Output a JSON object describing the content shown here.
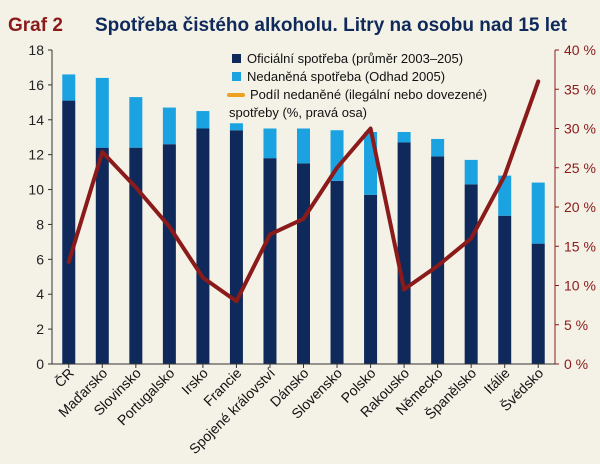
{
  "header": {
    "figure_label": "Graf 2",
    "title": "Spotřeba čistého alkoholu. Litry na osobu nad 15 let"
  },
  "colors": {
    "background": "#f4f1e6",
    "title_blue": "#0f2a5a",
    "label_red": "#8b1a1a",
    "bar_official": "#0f2a5a",
    "bar_untaxed": "#1aa3e0",
    "line": "#8b1a1a",
    "legend_orange": "#f0a020",
    "axis_right": "#8b1a1a",
    "axis_left": "#222222"
  },
  "chart_data": {
    "type": "bar",
    "stacked": true,
    "categories": [
      "ČR",
      "Maďarsko",
      "Slovinsko",
      "Portugalsko",
      "Irsko",
      "Francie",
      "Spojené království",
      "Dánsko",
      "Slovensko",
      "Polsko",
      "Rakousko",
      "Německo",
      "Španělsko",
      "Itálie",
      "Švédsko"
    ],
    "series": [
      {
        "name": "Oficiální spotřeba (průměr 2003–205)",
        "axis": "left",
        "kind": "bar",
        "values": [
          15.1,
          12.4,
          12.4,
          12.6,
          13.5,
          13.4,
          11.8,
          11.5,
          10.5,
          9.7,
          12.7,
          11.9,
          10.3,
          8.5,
          6.9
        ]
      },
      {
        "name": "Nedaněná spotřeba (Odhad 2005)",
        "axis": "left",
        "kind": "bar",
        "values": [
          1.5,
          4.0,
          2.9,
          2.1,
          1.0,
          0.4,
          1.7,
          2.0,
          2.9,
          3.6,
          0.6,
          1.0,
          1.4,
          2.3,
          3.5
        ]
      },
      {
        "name": "Podíl nedaněné (ilegální nebo dovezené) spotřeby (%, pravá osa)",
        "axis": "right",
        "kind": "line",
        "values": [
          13,
          27,
          22.5,
          17.5,
          11,
          8,
          16.5,
          18.5,
          25,
          30,
          9.5,
          12.5,
          16,
          24,
          36
        ]
      }
    ],
    "left_axis": {
      "min": 0,
      "max": 18,
      "ticks": [
        "0",
        "2",
        "4",
        "6",
        "8",
        "10",
        "12",
        "14",
        "16",
        "18"
      ]
    },
    "right_axis": {
      "min": 0,
      "max": 40,
      "ticks": [
        "0 %",
        "5 %",
        "10 %",
        "15 %",
        "20 %",
        "25 %",
        "30 %",
        "35 %",
        "40 %"
      ]
    },
    "legend_placement": "top-center",
    "grid": false
  }
}
